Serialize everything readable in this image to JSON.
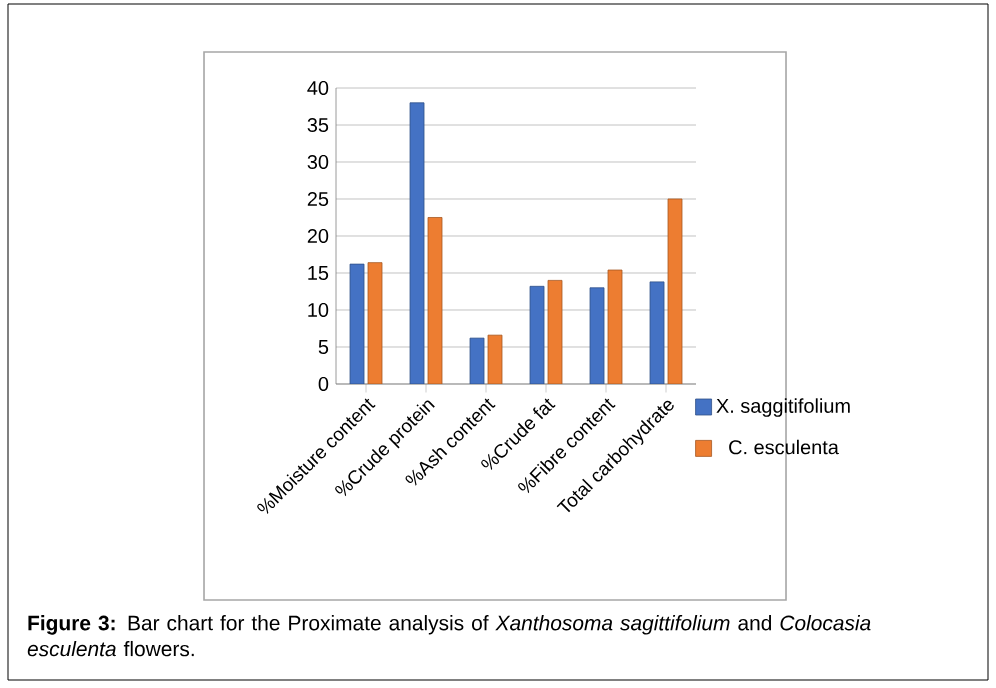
{
  "chart_data": {
    "type": "bar",
    "categories": [
      "%Moisture content",
      "%Crude protein",
      "%Ash content",
      "%Crude fat",
      "%Fibre content",
      "Total carbohydrate"
    ],
    "series": [
      {
        "name": "X. saggitifolium",
        "color": "#4472c4",
        "values": [
          16.2,
          38,
          6.2,
          13.2,
          13,
          13.8
        ]
      },
      {
        "name": "C. esculenta",
        "color": "#ed7d31",
        "values": [
          16.4,
          22.5,
          6.6,
          14,
          15.4,
          25
        ]
      }
    ],
    "ylim": [
      0,
      40
    ],
    "yticks": [
      0,
      5,
      10,
      15,
      20,
      25,
      30,
      35,
      40
    ],
    "grid": "y",
    "legend": "right",
    "annotations": [
      "**Figure 3:** Bar chart for the Proximate analysis of *Xanthosoma sagittifolium* and *Colocasia esculenta* flowers."
    ]
  }
}
